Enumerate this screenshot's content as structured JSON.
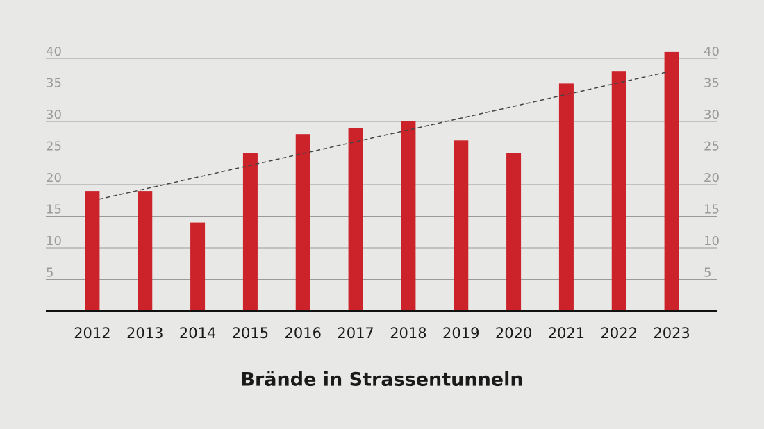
{
  "chart_data": {
    "type": "bar",
    "title": "Brände in Strassentunneln",
    "categories": [
      "2012",
      "2013",
      "2014",
      "2015",
      "2016",
      "2017",
      "2018",
      "2019",
      "2020",
      "2021",
      "2022",
      "2023"
    ],
    "values": [
      19,
      19,
      14,
      25,
      28,
      29,
      30,
      27,
      25,
      36,
      38,
      41
    ],
    "color": "#cc2229",
    "ylim": [
      0,
      40
    ],
    "yticks": [
      5,
      10,
      15,
      20,
      25,
      30,
      35,
      40
    ],
    "grid": true,
    "trend": {
      "values": [
        17.7,
        37.8
      ],
      "color": "#444444",
      "dashed": true
    }
  }
}
